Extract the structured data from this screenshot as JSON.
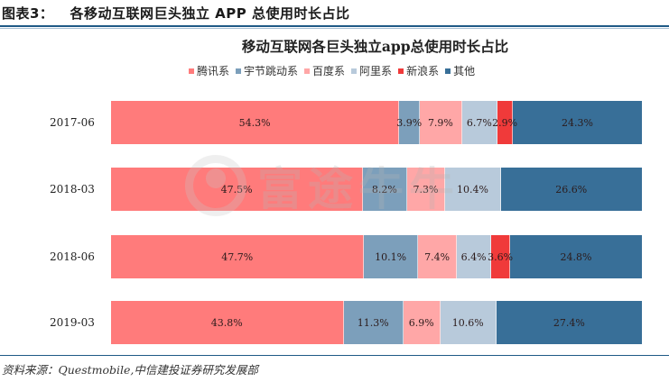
{
  "figure": {
    "number_label": "图表3：",
    "title": "各移动互联网巨头独立 APP 总使用时长占比"
  },
  "chart_data": {
    "type": "bar",
    "orientation": "horizontal",
    "stacked": true,
    "percent_stacked": true,
    "title": "移动互联网各巨头独立app总使用时长占比",
    "xlabel": "",
    "ylabel": "",
    "xlim": [
      0,
      100
    ],
    "grid": false,
    "legend_position": "top",
    "categories": [
      "2017-06",
      "2018-03",
      "2018-06",
      "2019-03"
    ],
    "series": [
      {
        "name": "腾讯系",
        "color": "#ff7b7b",
        "values": [
          54.3,
          47.5,
          47.7,
          43.8
        ],
        "labels": [
          "54.3%",
          "47.5%",
          "47.7%",
          "43.8%"
        ]
      },
      {
        "name": "宇节跳动系",
        "color": "#7c9fbb",
        "values": [
          3.9,
          8.2,
          10.1,
          11.3
        ],
        "labels": [
          "3.9%",
          "8.2%",
          "10.1%",
          "11.3%"
        ]
      },
      {
        "name": "百度系",
        "color": "#ffa7a7",
        "values": [
          7.9,
          7.3,
          7.4,
          6.9
        ],
        "labels": [
          "7.9%",
          "7.3%",
          "7.4%",
          "6.9%"
        ]
      },
      {
        "name": "阿里系",
        "color": "#b8cadb",
        "values": [
          6.7,
          10.4,
          6.4,
          10.6
        ],
        "labels": [
          "6.7%",
          "10.4%",
          "6.4%",
          "10.6%"
        ]
      },
      {
        "name": "新浪系",
        "color": "#f03a3a",
        "values": [
          2.9,
          0,
          3.6,
          0
        ],
        "labels": [
          "2.9%",
          "",
          "3.6%",
          ""
        ]
      },
      {
        "name": "其他",
        "color": "#386f98",
        "values": [
          24.3,
          26.6,
          24.8,
          27.4
        ],
        "labels": [
          "24.3%",
          "26.6%",
          "24.8%",
          "27.4%"
        ]
      }
    ]
  },
  "watermark": {
    "text": "富途牛牛"
  },
  "source": "资料来源：Questmobile,中信建投证券研究发展部"
}
